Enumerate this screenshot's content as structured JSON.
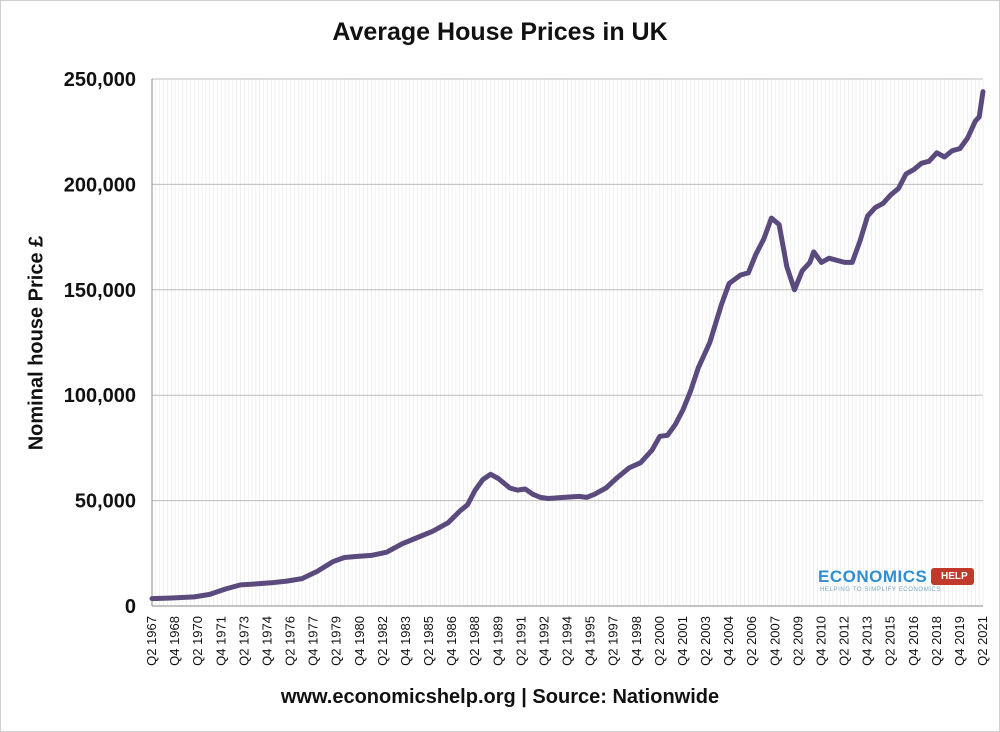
{
  "logo": {
    "word": "ECONOMICS",
    "help": "HELP",
    "tagline": "HELPING TO SIMPLIFY ECONOMICS"
  },
  "colors": {
    "line": "#5b4a7e",
    "grid": "#bdbdbd",
    "axis": "#8a8a8a"
  },
  "chart_data": {
    "type": "line",
    "title": "Average House Prices in UK",
    "ylabel": "Nominal house Price £",
    "xlabel": "www.economicshelp.org | Source: Nationwide",
    "ylim": [
      0,
      250000
    ],
    "yticks": [
      0,
      50000,
      100000,
      150000,
      200000,
      250000
    ],
    "ytick_labels": [
      "0",
      "50,000",
      "100,000",
      "150,000",
      "200,000",
      "250,000"
    ],
    "xlim": [
      1967.25,
      2021.25
    ],
    "xticks": [
      1967.25,
      1968.75,
      1970.25,
      1971.75,
      1973.25,
      1974.75,
      1976.25,
      1977.75,
      1979.25,
      1980.75,
      1982.25,
      1983.75,
      1985.25,
      1986.75,
      1988.25,
      1989.75,
      1991.25,
      1992.75,
      1994.25,
      1995.75,
      1997.25,
      1998.75,
      2000.25,
      2001.75,
      2003.25,
      2004.75,
      2006.25,
      2007.75,
      2009.25,
      2010.75,
      2012.25,
      2013.75,
      2015.25,
      2016.75,
      2018.25,
      2019.75,
      2021.25
    ],
    "xtick_labels": [
      "Q2 1967",
      "Q4 1968",
      "Q2 1970",
      "Q4 1971",
      "Q2 1973",
      "Q4 1974",
      "Q2 1976",
      "Q4 1977",
      "Q2 1979",
      "Q4 1980",
      "Q2 1982",
      "Q4 1983",
      "Q2 1985",
      "Q4 1986",
      "Q2 1988",
      "Q4 1989",
      "Q2 1991",
      "Q4 1992",
      "Q2 1994",
      "Q4 1995",
      "Q2 1997",
      "Q4 1998",
      "Q2 2000",
      "Q4 2001",
      "Q2 2003",
      "Q4 2004",
      "Q2 2006",
      "Q4 2007",
      "Q2 2009",
      "Q4 2010",
      "Q2 2012",
      "Q4 2013",
      "Q2 2015",
      "Q4 2016",
      "Q2 2018",
      "Q4 2019",
      "Q2 2021"
    ],
    "grid": true,
    "series": [
      {
        "x": [
          1967.25,
          1968.5,
          1970,
          1971,
          1972,
          1973,
          1974,
          1975,
          1976,
          1977,
          1978,
          1979,
          1979.75,
          1980.5,
          1981.5,
          1982.5,
          1983.5,
          1984.5,
          1985.5,
          1986.5,
          1987.25,
          1987.75,
          1988.25,
          1988.75,
          1989.25,
          1989.75,
          1990.5,
          1991,
          1991.5,
          1992,
          1992.5,
          1993,
          1994,
          1995,
          1995.5,
          1996,
          1996.75,
          1997.5,
          1998.25,
          1999,
          1999.75,
          2000.25,
          2000.75,
          2001.25,
          2001.75,
          2002.25,
          2002.75,
          2003.5,
          2004.25,
          2004.75,
          2005.5,
          2006,
          2006.5,
          2007,
          2007.5,
          2008,
          2008.5,
          2009,
          2009.5,
          2010,
          2010.25,
          2010.75,
          2011.25,
          2011.75,
          2012.25,
          2012.75,
          2013.25,
          2013.75,
          2014.25,
          2014.75,
          2015.25,
          2015.75,
          2016.25,
          2016.75,
          2017.25,
          2017.75,
          2018.25,
          2018.75,
          2019.25,
          2019.75,
          2020.25,
          2020.75,
          2021,
          2021.25
        ],
        "values": [
          3500,
          3800,
          4300,
          5500,
          8000,
          10000,
          10500,
          11000,
          11800,
          13000,
          16500,
          21000,
          23000,
          23500,
          24000,
          25500,
          29500,
          32500,
          35500,
          39500,
          45000,
          48000,
          55000,
          60000,
          62500,
          60500,
          56000,
          55000,
          55500,
          53000,
          51500,
          51000,
          51500,
          52000,
          51500,
          53000,
          56000,
          61000,
          65500,
          68000,
          74000,
          80500,
          81000,
          86000,
          93000,
          102000,
          113000,
          125000,
          143000,
          153000,
          157000,
          158000,
          167000,
          174000,
          184000,
          181000,
          161000,
          150000,
          159000,
          163000,
          168000,
          163000,
          165000,
          164000,
          163000,
          163000,
          173000,
          185000,
          189000,
          191000,
          195000,
          198000,
          205000,
          207000,
          210000,
          211000,
          215000,
          213000,
          216000,
          217000,
          222000,
          230000,
          232000,
          244000
        ]
      }
    ]
  }
}
